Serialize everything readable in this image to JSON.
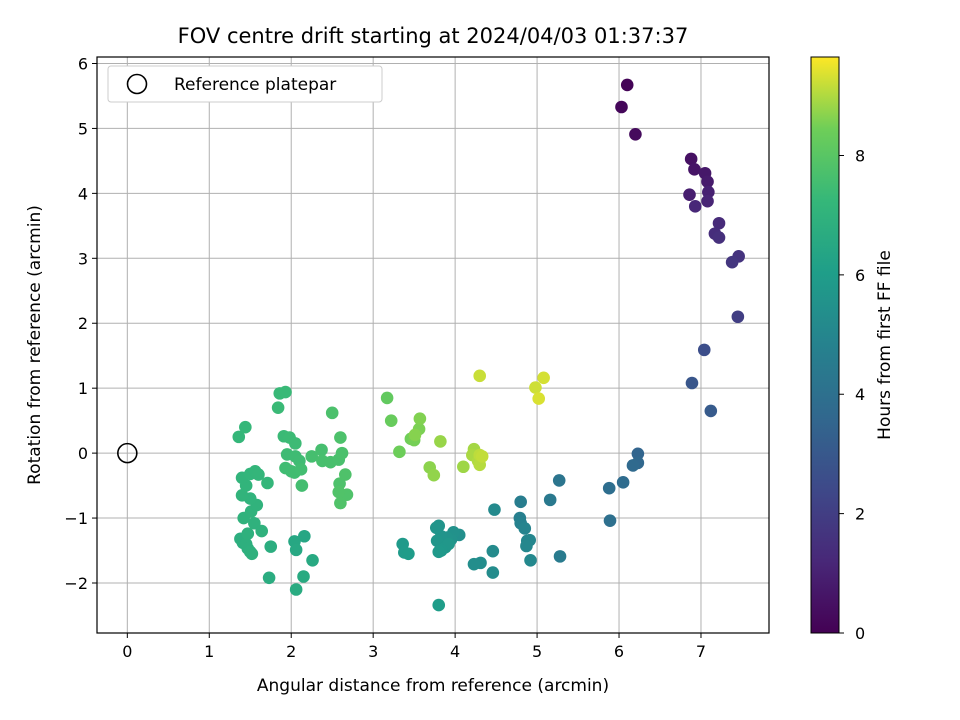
{
  "chart_data": {
    "type": "scatter",
    "title": "FOV centre drift starting at 2024/04/03 01:37:37",
    "xlabel": "Angular distance from reference (arcmin)",
    "ylabel": "Rotation from reference (arcmin)",
    "xlim": [
      -0.37,
      7.83
    ],
    "ylim": [
      -2.77,
      6.1
    ],
    "xticks": [
      0,
      1,
      2,
      3,
      4,
      5,
      6,
      7
    ],
    "yticks": [
      -2,
      -1,
      0,
      1,
      2,
      3,
      4,
      5,
      6
    ],
    "grid": true,
    "legend": {
      "placement": "top-left",
      "entries": [
        "Reference platepar"
      ]
    },
    "reference_point": {
      "x": 0,
      "y": 0,
      "label": "Reference platepar"
    },
    "colorbar": {
      "label": "Hours from first FF file",
      "range": [
        0,
        9.65
      ],
      "ticks": [
        0,
        2,
        4,
        6,
        8
      ],
      "colormap": "viridis"
    },
    "points": [
      [
        6.1,
        5.67,
        0.1
      ],
      [
        6.03,
        5.33,
        0.2
      ],
      [
        6.2,
        4.91,
        0.3
      ],
      [
        6.88,
        4.53,
        0.5
      ],
      [
        6.92,
        4.37,
        0.6
      ],
      [
        7.05,
        4.31,
        0.7
      ],
      [
        7.08,
        4.18,
        0.8
      ],
      [
        6.86,
        3.98,
        0.9
      ],
      [
        7.09,
        4.02,
        1.0
      ],
      [
        7.08,
        3.88,
        1.1
      ],
      [
        6.93,
        3.8,
        1.2
      ],
      [
        7.22,
        3.54,
        1.3
      ],
      [
        7.17,
        3.38,
        1.4
      ],
      [
        7.22,
        3.32,
        1.5
      ],
      [
        7.46,
        3.03,
        1.6
      ],
      [
        7.38,
        2.94,
        1.7
      ],
      [
        7.45,
        2.1,
        2.0
      ],
      [
        7.04,
        1.59,
        2.6
      ],
      [
        6.89,
        1.08,
        2.9
      ],
      [
        7.12,
        0.65,
        3.1
      ],
      [
        6.23,
        -0.01,
        3.5
      ],
      [
        6.23,
        -0.15,
        3.6
      ],
      [
        6.17,
        -0.19,
        3.7
      ],
      [
        6.05,
        -0.45,
        3.8
      ],
      [
        5.88,
        -0.54,
        3.9
      ],
      [
        5.89,
        -1.04,
        4.0
      ],
      [
        5.27,
        -0.42,
        4.2
      ],
      [
        5.16,
        -0.72,
        4.4
      ],
      [
        5.28,
        -1.59,
        4.5
      ],
      [
        4.8,
        -0.75,
        4.6
      ],
      [
        4.79,
        -1.0,
        4.7
      ],
      [
        4.8,
        -1.08,
        4.8
      ],
      [
        4.85,
        -1.16,
        4.9
      ],
      [
        4.88,
        -1.35,
        4.95
      ],
      [
        4.91,
        -1.34,
        5.0
      ],
      [
        4.87,
        -1.43,
        5.05
      ],
      [
        4.92,
        -1.65,
        5.1
      ],
      [
        4.48,
        -0.87,
        5.15
      ],
      [
        4.46,
        -1.51,
        5.2
      ],
      [
        4.46,
        -1.84,
        5.25
      ],
      [
        4.31,
        -1.69,
        5.3
      ],
      [
        4.23,
        -1.71,
        5.35
      ],
      [
        4.05,
        -1.26,
        5.4
      ],
      [
        3.98,
        -1.22,
        5.45
      ],
      [
        3.95,
        -1.33,
        5.5
      ],
      [
        3.9,
        -1.3,
        5.55
      ],
      [
        3.83,
        -1.28,
        5.6
      ],
      [
        3.8,
        -1.12,
        5.62
      ],
      [
        3.77,
        -1.15,
        5.65
      ],
      [
        3.78,
        -1.35,
        5.7
      ],
      [
        3.88,
        -1.45,
        5.72
      ],
      [
        3.92,
        -1.4,
        5.75
      ],
      [
        3.83,
        -1.5,
        5.78
      ],
      [
        3.8,
        -1.52,
        5.8
      ],
      [
        3.36,
        -1.4,
        5.85
      ],
      [
        3.38,
        -1.53,
        5.9
      ],
      [
        3.43,
        -1.55,
        5.95
      ],
      [
        3.8,
        -2.34,
        6.0
      ],
      [
        2.16,
        -1.28,
        6.4
      ],
      [
        2.04,
        -1.36,
        6.45
      ],
      [
        2.06,
        -1.49,
        6.5
      ],
      [
        2.26,
        -1.65,
        6.55
      ],
      [
        2.15,
        -1.9,
        6.6
      ],
      [
        2.06,
        -2.1,
        6.65
      ],
      [
        1.73,
        -1.92,
        6.7
      ],
      [
        1.75,
        -1.44,
        6.75
      ],
      [
        1.38,
        -1.32,
        6.8
      ],
      [
        1.41,
        -1.38,
        6.82
      ],
      [
        1.45,
        -1.4,
        6.84
      ],
      [
        1.47,
        -1.47,
        6.86
      ],
      [
        1.5,
        -1.52,
        6.88
      ],
      [
        1.52,
        -1.55,
        6.9
      ],
      [
        1.47,
        -1.24,
        6.92
      ],
      [
        1.55,
        -1.08,
        6.94
      ],
      [
        1.64,
        -1.2,
        6.96
      ],
      [
        1.42,
        -1.0,
        6.98
      ],
      [
        1.51,
        -0.9,
        7.0
      ],
      [
        1.58,
        -0.8,
        7.02
      ],
      [
        1.5,
        -0.7,
        7.04
      ],
      [
        1.4,
        -0.65,
        7.06
      ],
      [
        1.45,
        -0.5,
        7.08
      ],
      [
        1.4,
        -0.38,
        7.1
      ],
      [
        1.5,
        -0.32,
        7.12
      ],
      [
        1.56,
        -0.28,
        7.14
      ],
      [
        1.6,
        -0.33,
        7.16
      ],
      [
        1.71,
        -0.46,
        7.18
      ],
      [
        1.36,
        0.25,
        7.2
      ],
      [
        1.44,
        0.4,
        7.22
      ],
      [
        1.86,
        0.92,
        7.3
      ],
      [
        1.93,
        0.94,
        7.32
      ],
      [
        1.84,
        0.7,
        7.34
      ],
      [
        1.91,
        0.26,
        7.36
      ],
      [
        1.98,
        0.24,
        7.38
      ],
      [
        2.05,
        0.15,
        7.4
      ],
      [
        1.95,
        -0.02,
        7.42
      ],
      [
        2.05,
        -0.05,
        7.44
      ],
      [
        2.1,
        -0.12,
        7.46
      ],
      [
        1.93,
        -0.23,
        7.48
      ],
      [
        2.0,
        -0.28,
        7.5
      ],
      [
        2.04,
        -0.3,
        7.52
      ],
      [
        2.12,
        -0.25,
        7.54
      ],
      [
        2.13,
        -0.5,
        7.56
      ],
      [
        2.25,
        -0.05,
        7.6
      ],
      [
        2.37,
        0.05,
        7.62
      ],
      [
        2.38,
        -0.12,
        7.64
      ],
      [
        2.48,
        -0.14,
        7.66
      ],
      [
        2.58,
        -0.1,
        7.68
      ],
      [
        2.62,
        0.0,
        7.7
      ],
      [
        2.5,
        0.62,
        7.72
      ],
      [
        2.6,
        0.24,
        7.74
      ],
      [
        2.59,
        -0.47,
        7.76
      ],
      [
        2.66,
        -0.33,
        7.78
      ],
      [
        2.68,
        -0.64,
        7.8
      ],
      [
        2.58,
        -0.6,
        7.82
      ],
      [
        2.6,
        -0.77,
        7.84
      ],
      [
        3.17,
        0.85,
        8.2
      ],
      [
        3.22,
        0.5,
        8.3
      ],
      [
        3.32,
        0.02,
        8.4
      ],
      [
        3.46,
        0.22,
        8.45
      ],
      [
        3.5,
        0.2,
        8.5
      ],
      [
        3.56,
        0.37,
        8.55
      ],
      [
        3.57,
        0.53,
        8.6
      ],
      [
        3.51,
        0.28,
        8.65
      ],
      [
        3.69,
        -0.22,
        8.7
      ],
      [
        3.74,
        -0.34,
        8.75
      ],
      [
        3.82,
        0.18,
        8.8
      ],
      [
        4.1,
        -0.21,
        8.85
      ],
      [
        4.23,
        0.06,
        8.9
      ],
      [
        4.21,
        -0.03,
        8.95
      ],
      [
        4.28,
        -0.12,
        9.0
      ],
      [
        4.3,
        -0.18,
        9.05
      ],
      [
        4.3,
        -0.03,
        9.1
      ],
      [
        4.33,
        -0.05,
        9.15
      ],
      [
        4.3,
        1.19,
        9.2
      ],
      [
        4.98,
        1.01,
        9.25
      ],
      [
        5.08,
        1.16,
        9.3
      ],
      [
        5.02,
        0.84,
        9.35
      ]
    ]
  }
}
